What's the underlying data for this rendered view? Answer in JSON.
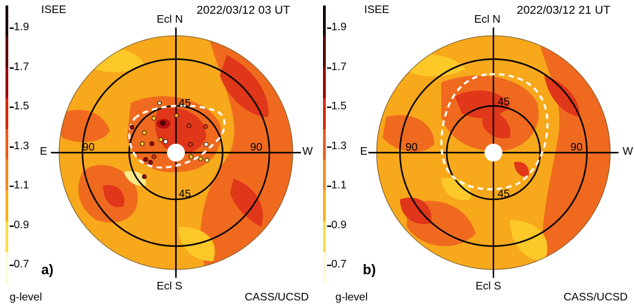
{
  "colorbar": {
    "labels": [
      "1.9",
      "1.7",
      "1.5",
      "1.3",
      "1.1",
      "0.9",
      "0.7"
    ],
    "colors": [
      "#1a0000",
      "#5c0000",
      "#9e0000",
      "#d42a00",
      "#ef5c1c",
      "#f38a1e",
      "#f8b414",
      "#fae04a",
      "#fffbd6"
    ]
  },
  "panels": [
    {
      "org": "ISEE",
      "timestamp": "2022/03/12 03 UT",
      "ecl_n": "Ecl N",
      "ecl_s": "Ecl S",
      "east": "E",
      "west": "W",
      "ring_labels": {
        "inner": "45",
        "outer": "90"
      },
      "panel_label": "a)",
      "legend_title": "g-level",
      "credit": "CASS/UCSD"
    },
    {
      "org": "ISEE",
      "timestamp": "2022/03/12 21 UT",
      "ecl_n": "Ecl N",
      "ecl_s": "Ecl S",
      "east": "E",
      "west": "W",
      "ring_labels": {
        "inner": "45",
        "outer": "90"
      },
      "panel_label": "b)",
      "legend_title": "g-level",
      "credit": "CASS/UCSD"
    }
  ],
  "colors": {
    "base": "#f7a81b",
    "mid": "#ef6a1e",
    "high": "#e0361a",
    "peak": "#b80f0f",
    "low": "#fcc928",
    "lowest": "#ffe88a"
  }
}
